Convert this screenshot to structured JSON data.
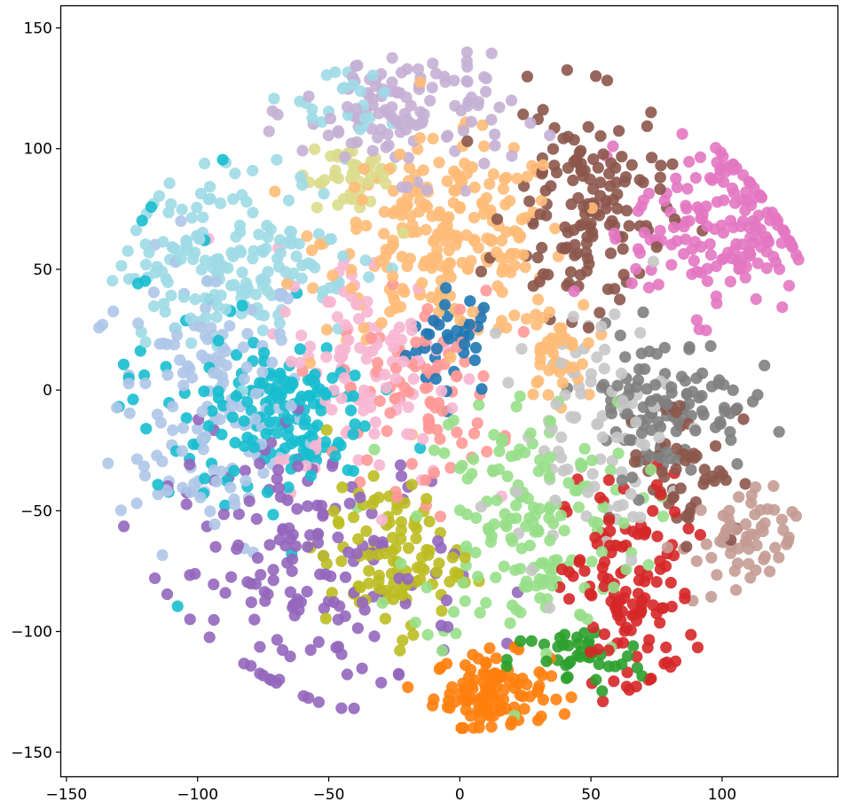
{
  "chart_data": {
    "type": "scatter",
    "title": "",
    "xlabel": "",
    "ylabel": "",
    "xlim": [
      -152,
      144
    ],
    "ylim": [
      -160,
      159
    ],
    "x_ticks": [
      -150,
      -100,
      -50,
      0,
      50,
      100
    ],
    "x_tick_labels": [
      "−150",
      "−100",
      "−50",
      "0",
      "50",
      "100"
    ],
    "y_ticks": [
      -150,
      -100,
      -50,
      0,
      50,
      100,
      150
    ],
    "y_tick_labels": [
      "−150",
      "−100",
      "−50",
      "0",
      "50",
      "100",
      "150"
    ],
    "grid": false,
    "legend": "none",
    "marker_alpha": 0.9,
    "clusters": [
      {
        "color": "#1f77b4",
        "cx": -2,
        "cy": 20,
        "sx": 9,
        "sy": 11,
        "n": 35
      },
      {
        "color": "#aec7e8",
        "cx": -95,
        "cy": -5,
        "sx": 18,
        "sy": 30,
        "n": 150
      },
      {
        "color": "#ff7f0e",
        "cx": 12,
        "cy": -125,
        "sx": 11,
        "sy": 8,
        "n": 115
      },
      {
        "color": "#ffbb78",
        "cx": -5,
        "cy": 62,
        "sx": 23,
        "sy": 20,
        "n": 230
      },
      {
        "color": "#ffbb78",
        "cx": 35,
        "cy": 15,
        "sx": 6,
        "sy": 10,
        "n": 45
      },
      {
        "color": "#2ca02c",
        "cx": 45,
        "cy": -112,
        "sx": 13,
        "sy": 7,
        "n": 40
      },
      {
        "color": "#98df8a",
        "cx": 25,
        "cy": -55,
        "sx": 22,
        "sy": 28,
        "n": 170
      },
      {
        "color": "#d62728",
        "cx": 65,
        "cy": -85,
        "sx": 12,
        "sy": 25,
        "n": 125
      },
      {
        "color": "#ff9896",
        "cx": -15,
        "cy": 0,
        "sx": 15,
        "sy": 20,
        "n": 85
      },
      {
        "color": "#9467bd",
        "cx": -55,
        "cy": -75,
        "sx": 28,
        "sy": 28,
        "n": 170
      },
      {
        "color": "#c5b0d5",
        "cx": -20,
        "cy": 115,
        "sx": 20,
        "sy": 13,
        "n": 120
      },
      {
        "color": "#8c564b",
        "cx": 48,
        "cy": 75,
        "sx": 15,
        "sy": 22,
        "n": 145
      },
      {
        "color": "#8c564b",
        "cx": 85,
        "cy": -30,
        "sx": 11,
        "sy": 15,
        "n": 55
      },
      {
        "color": "#c49c94",
        "cx": 105,
        "cy": -65,
        "sx": 11,
        "sy": 12,
        "n": 60
      },
      {
        "color": "#e377c2",
        "cx": 100,
        "cy": 68,
        "sx": 17,
        "sy": 18,
        "n": 170
      },
      {
        "color": "#f7b6d2",
        "cx": -35,
        "cy": 10,
        "sx": 18,
        "sy": 25,
        "n": 115
      },
      {
        "color": "#7f7f7f",
        "cx": 78,
        "cy": -5,
        "sx": 16,
        "sy": 15,
        "n": 115
      },
      {
        "color": "#c7c7c7",
        "cx": 50,
        "cy": -15,
        "sx": 15,
        "sy": 25,
        "n": 90
      },
      {
        "color": "#bcbd22",
        "cx": -25,
        "cy": -70,
        "sx": 13,
        "sy": 15,
        "n": 105
      },
      {
        "color": "#dbdb8d",
        "cx": -42,
        "cy": 88,
        "sx": 9,
        "sy": 9,
        "n": 45
      },
      {
        "color": "#17becf",
        "cx": -68,
        "cy": -10,
        "sx": 16,
        "sy": 14,
        "n": 135
      },
      {
        "color": "#17becf",
        "cx": -100,
        "cy": 0,
        "sx": 15,
        "sy": 40,
        "n": 45
      },
      {
        "color": "#9edae5",
        "cx": -85,
        "cy": 55,
        "sx": 23,
        "sy": 18,
        "n": 175
      },
      {
        "color": "#9edae5",
        "cx": -50,
        "cy": 120,
        "sx": 10,
        "sy": 8,
        "n": 25
      }
    ]
  }
}
